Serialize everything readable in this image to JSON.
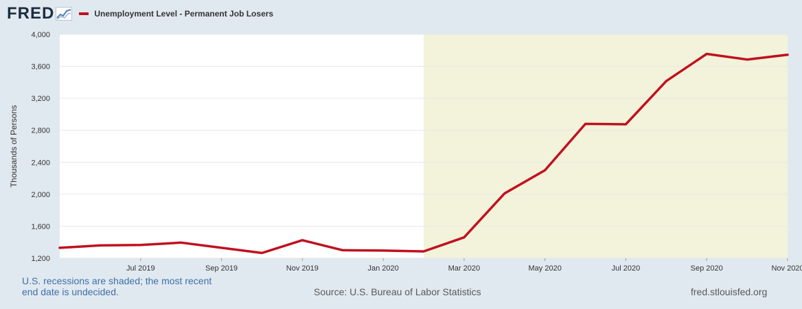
{
  "header": {
    "logo_text": "FRED",
    "logo_icon": "fred-chart-icon",
    "series_label": "Unemployment Level - Permanent Job Losers",
    "series_color": "#c0111f"
  },
  "colors": {
    "plot_background": "#ffffff",
    "recession_shade": "#f3f3db",
    "frame_background": "#e1e9f0",
    "series_line": "#c0111f",
    "gridline": "#e6e6e6"
  },
  "footer": {
    "recession_note": "U.S. recessions are shaded; the most recent end date is undecided.",
    "source": "Source: U.S. Bureau of Labor Statistics",
    "site": "fred.stlouisfed.org"
  },
  "chart_data": {
    "type": "line",
    "title": "Unemployment Level - Permanent Job Losers",
    "xlabel": "",
    "ylabel": "Thousands of Persons",
    "ylim": [
      1200,
      4000
    ],
    "xlim": [
      "2019-05",
      "2020-11"
    ],
    "y_ticks": [
      1200,
      1600,
      2000,
      2400,
      2800,
      3200,
      3600,
      4000
    ],
    "y_tick_labels": [
      "1,200",
      "1,600",
      "2,000",
      "2,400",
      "2,800",
      "3,200",
      "3,600",
      "4,000"
    ],
    "x_ticks": [
      "2019-07",
      "2019-09",
      "2019-11",
      "2020-01",
      "2020-03",
      "2020-05",
      "2020-07",
      "2020-09",
      "2020-11"
    ],
    "x_tick_labels": [
      "Jul 2019",
      "Sep 2019",
      "Nov 2019",
      "Jan 2020",
      "Mar 2020",
      "May 2020",
      "Jul 2020",
      "Sep 2020",
      "Nov 2020"
    ],
    "grid": true,
    "legend": "top-left",
    "recession_shading": {
      "start": "2020-02",
      "end": "2020-11"
    },
    "series": [
      {
        "name": "Unemployment Level - Permanent Job Losers",
        "color": "#c0111f",
        "x": [
          "2019-05",
          "2019-06",
          "2019-07",
          "2019-08",
          "2019-09",
          "2019-10",
          "2019-11",
          "2019-12",
          "2020-01",
          "2020-02",
          "2020-03",
          "2020-04",
          "2020-05",
          "2020-06",
          "2020-07",
          "2020-08",
          "2020-09",
          "2020-10",
          "2020-11"
        ],
        "values": [
          1330,
          1360,
          1365,
          1395,
          1330,
          1265,
          1425,
          1300,
          1295,
          1285,
          1460,
          2010,
          2300,
          2880,
          2875,
          3415,
          3755,
          3685,
          3745
        ]
      }
    ]
  }
}
